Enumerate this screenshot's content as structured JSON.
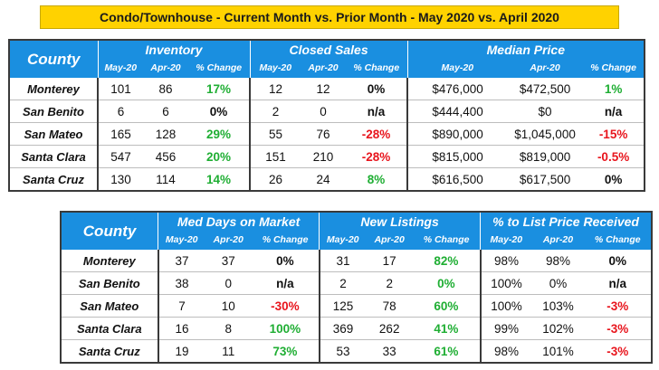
{
  "title": "Condo/Townhouse - Current Month vs. Prior Month - May 2020 vs. April 2020",
  "county_label": "County",
  "col_labels": [
    "May-20",
    "Apr-20",
    "% Change"
  ],
  "table1": {
    "groups": [
      "Inventory",
      "Closed Sales",
      "Median Price"
    ],
    "rows": [
      {
        "county": "Monterey",
        "cells": [
          "101",
          "86",
          "17%",
          "12",
          "12",
          "0%",
          "$476,000",
          "$472,500",
          "1%"
        ],
        "tones": [
          "pos",
          "neu",
          "pos"
        ]
      },
      {
        "county": "San Benito",
        "cells": [
          "6",
          "6",
          "0%",
          "2",
          "0",
          "n/a",
          "$444,400",
          "$0",
          "n/a"
        ],
        "tones": [
          "neu",
          "neu",
          "neu"
        ]
      },
      {
        "county": "San Mateo",
        "cells": [
          "165",
          "128",
          "29%",
          "55",
          "76",
          "-28%",
          "$890,000",
          "$1,045,000",
          "-15%"
        ],
        "tones": [
          "pos",
          "neg",
          "neg"
        ]
      },
      {
        "county": "Santa Clara",
        "cells": [
          "547",
          "456",
          "20%",
          "151",
          "210",
          "-28%",
          "$815,000",
          "$819,000",
          "-0.5%"
        ],
        "tones": [
          "pos",
          "neg",
          "neg"
        ]
      },
      {
        "county": "Santa Cruz",
        "cells": [
          "130",
          "114",
          "14%",
          "26",
          "24",
          "8%",
          "$616,500",
          "$617,500",
          "0%"
        ],
        "tones": [
          "pos",
          "pos",
          "neu"
        ]
      }
    ]
  },
  "table2": {
    "groups": [
      "Med Days on Market",
      "New Listings",
      "% to List Price Received"
    ],
    "rows": [
      {
        "county": "Monterey",
        "cells": [
          "37",
          "37",
          "0%",
          "31",
          "17",
          "82%",
          "98%",
          "98%",
          "0%"
        ],
        "tones": [
          "neu",
          "pos",
          "neu"
        ]
      },
      {
        "county": "San Benito",
        "cells": [
          "38",
          "0",
          "n/a",
          "2",
          "2",
          "0%",
          "100%",
          "0%",
          "n/a"
        ],
        "tones": [
          "neu",
          "pos",
          "neu"
        ]
      },
      {
        "county": "San Mateo",
        "cells": [
          "7",
          "10",
          "-30%",
          "125",
          "78",
          "60%",
          "100%",
          "103%",
          "-3%"
        ],
        "tones": [
          "neg",
          "pos",
          "neg"
        ]
      },
      {
        "county": "Santa Clara",
        "cells": [
          "16",
          "8",
          "100%",
          "369",
          "262",
          "41%",
          "99%",
          "102%",
          "-3%"
        ],
        "tones": [
          "pos",
          "pos",
          "neg"
        ]
      },
      {
        "county": "Santa Cruz",
        "cells": [
          "19",
          "11",
          "73%",
          "53",
          "33",
          "61%",
          "98%",
          "101%",
          "-3%"
        ],
        "tones": [
          "pos",
          "pos",
          "neg"
        ]
      }
    ]
  }
}
